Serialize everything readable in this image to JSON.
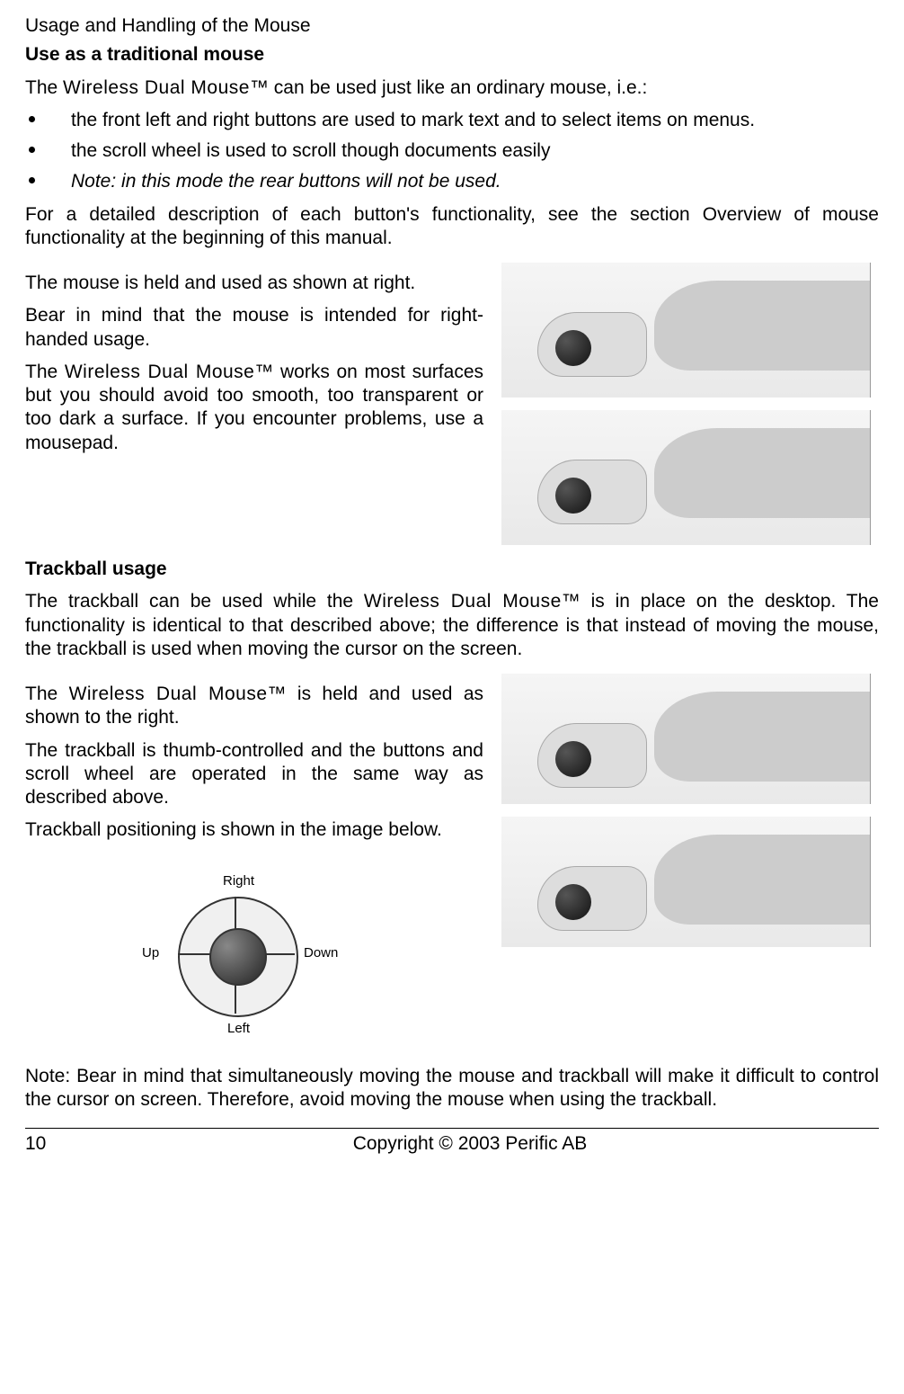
{
  "heading": "Usage and Handling of the Mouse",
  "sub1": "Use as a traditional mouse",
  "product": "Wireless Dual Mouse",
  "tm": "™",
  "intro": " can be used just like an ordinary mouse, i.e.:",
  "intro_prefix": "The ",
  "bullets": {
    "b1": "the front left and right buttons are used to mark text and to select items on menus.",
    "b2": "the scroll wheel is used to scroll though documents easily",
    "b3": "Note: in this mode the rear buttons will not be used."
  },
  "para_overview": "For a detailed description of each button's functionality, see the section Overview of mouse functionality at the beginning of this manual.",
  "left1_p1": "The mouse is held and used as shown at right.",
  "left1_p2": "Bear in mind that the mouse is intended for right-handed usage.",
  "left1_p3a": "The ",
  "left1_p3b": " works on most surfaces but you should avoid too smooth, too transparent or too dark a surface. If you encounter problems, use a mousepad.",
  "sub2": "Trackball usage",
  "trackball_p1a": "The trackball can be used while the ",
  "trackball_p1b": " is in place on the desktop. The functionality is identical to that described above; the difference is that instead of moving the mouse, the trackball is used when moving the cursor on the screen.",
  "left2_p1a": "The ",
  "left2_p1b": " is held and used as shown to the right.",
  "left2_p2": "The trackball is thumb-controlled and the buttons and scroll wheel are operated in the same way as described above.",
  "left2_p3": "Trackball positioning is shown in the image below.",
  "diagram": {
    "right": "Right",
    "left": "Left",
    "up": "Up",
    "down": "Down"
  },
  "note_bottom": "Note: Bear in mind that simultaneously moving the mouse and trackball will make it difficult to control the cursor on screen. Therefore, avoid moving the mouse when using the trackball.",
  "footer": {
    "page": "10",
    "copyright": "Copyright © 2003 Perific AB"
  }
}
